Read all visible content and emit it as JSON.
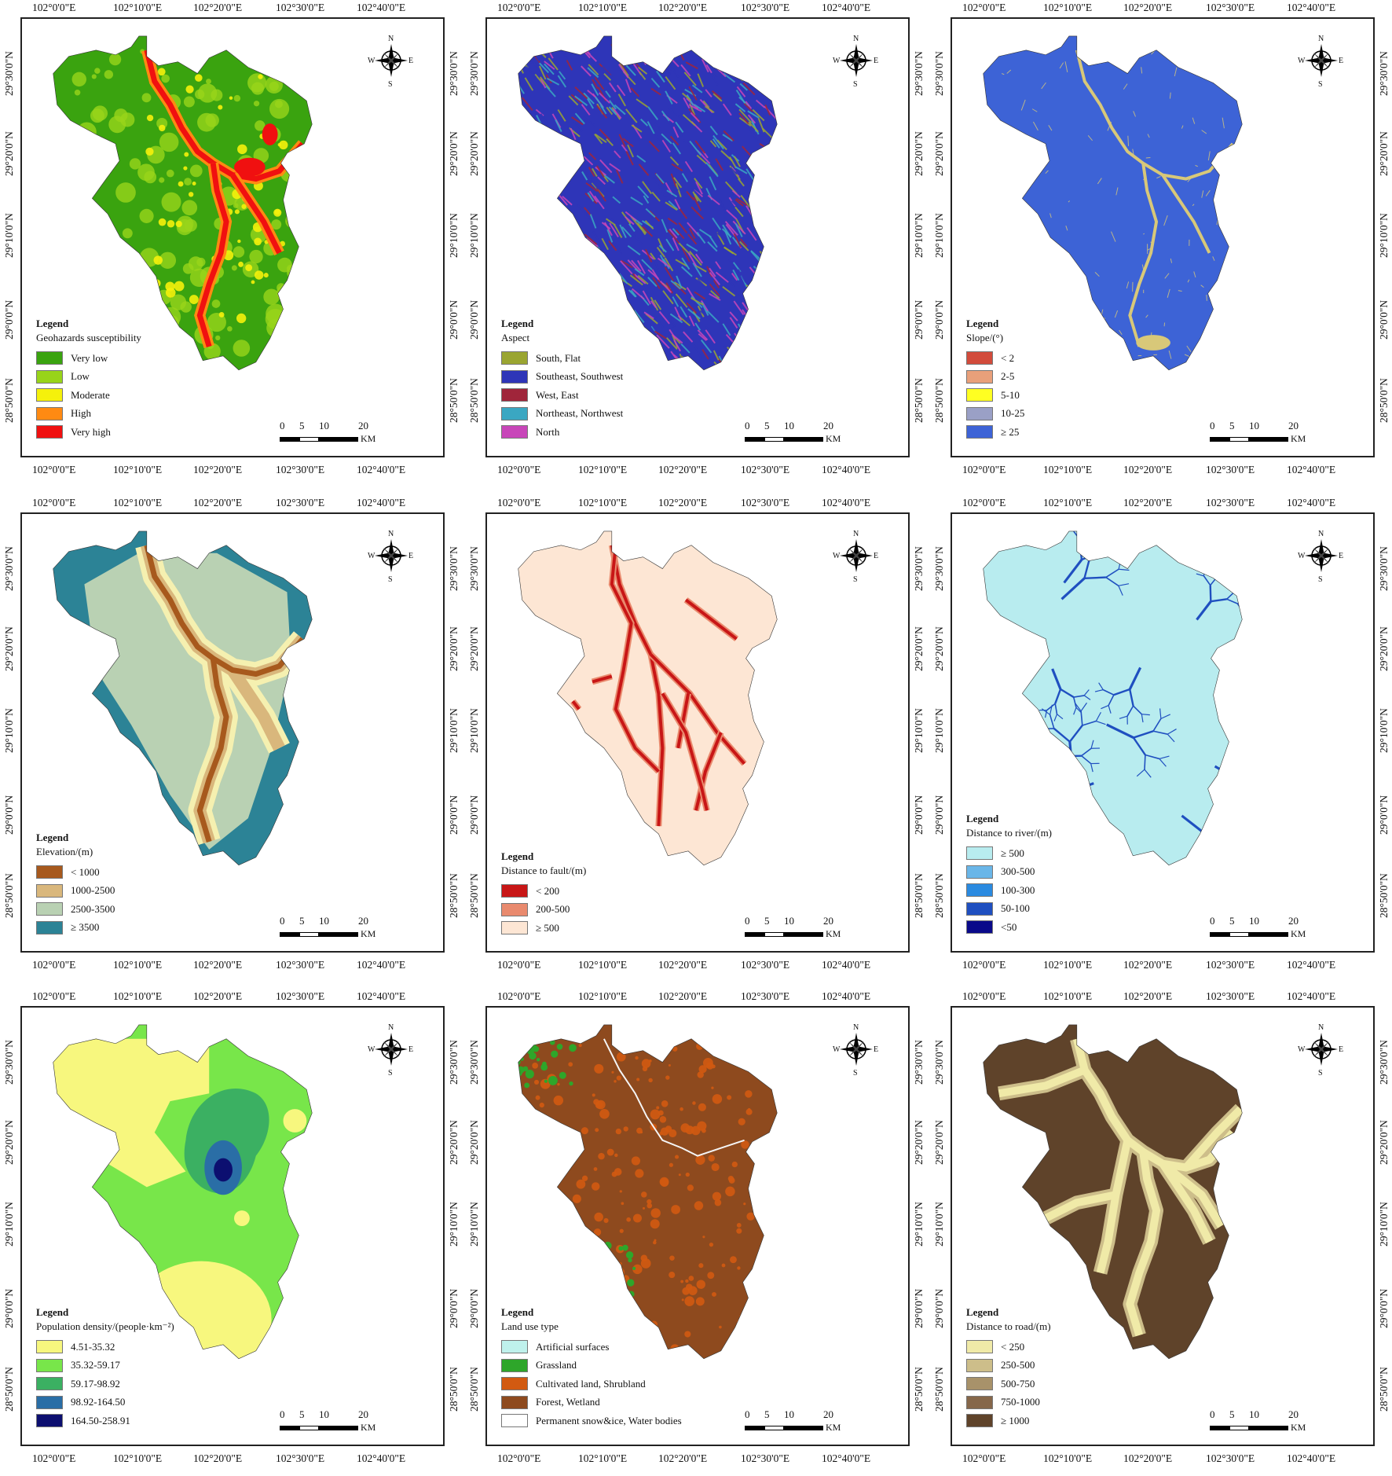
{
  "coords": {
    "lon_labels": [
      "102°0'0\"E",
      "102°10'0\"E",
      "102°20'0\"E",
      "102°30'0\"E",
      "102°40'0\"E"
    ],
    "lat_labels": [
      "29°30'0\"N",
      "29°20'0\"N",
      "29°10'0\"N",
      "29°0'0\"N",
      "28°50'0\"N"
    ]
  },
  "scale": {
    "ticks": [
      "0",
      "5",
      "10",
      "20"
    ],
    "unit": "KM"
  },
  "compass": {
    "n": "N",
    "s": "S",
    "e": "E",
    "w": "W",
    "icon": "north-arrow-compass-rose"
  },
  "panels": [
    {
      "id": "geohazards",
      "legend_title": "Legend",
      "variable": "Geohazards susceptibility",
      "classes": [
        {
          "label": "Very low",
          "color": "#3aa30f"
        },
        {
          "label": "Low",
          "color": "#98d41a"
        },
        {
          "label": "Moderate",
          "color": "#f5f10b"
        },
        {
          "label": "High",
          "color": "#ff8a12"
        },
        {
          "label": "Very high",
          "color": "#f01010"
        }
      ]
    },
    {
      "id": "aspect",
      "legend_title": "Legend",
      "variable": "Aspect",
      "classes": [
        {
          "label": "South, Flat",
          "color": "#9aa531"
        },
        {
          "label": "Southeast, Southwest",
          "color": "#2e35b8"
        },
        {
          "label": "West, East",
          "color": "#a0253a"
        },
        {
          "label": "Northeast, Northwest",
          "color": "#3aa7c2"
        },
        {
          "label": "North",
          "color": "#c846b9"
        }
      ]
    },
    {
      "id": "slope",
      "legend_title": "Legend",
      "variable": "Slope/(°)",
      "classes": [
        {
          "label": "< 2",
          "color": "#d24b3b"
        },
        {
          "label": "2-5",
          "color": "#e9a07a"
        },
        {
          "label": "5-10",
          "color": "#ffff22"
        },
        {
          "label": "10-25",
          "color": "#9aa0c6"
        },
        {
          "label": "≥ 25",
          "color": "#3d63d6"
        }
      ]
    },
    {
      "id": "elevation",
      "legend_title": "Legend",
      "variable": "Elevation/(m)",
      "classes": [
        {
          "label": "< 1000",
          "color": "#a7591d"
        },
        {
          "label": "1000-2500",
          "color": "#d9b77c"
        },
        {
          "label": "2500-3500",
          "color": "#b9d1b3"
        },
        {
          "label": "≥ 3500",
          "color": "#2c8396"
        }
      ]
    },
    {
      "id": "fault",
      "legend_title": "Legend",
      "variable": "Distance to fault/(m)",
      "classes": [
        {
          "label": "< 200",
          "color": "#c81616"
        },
        {
          "label": "200-500",
          "color": "#e98a6e"
        },
        {
          "label": "≥ 500",
          "color": "#fde6d4"
        }
      ]
    },
    {
      "id": "river",
      "legend_title": "Legend",
      "variable": "Distance to river/(m)",
      "classes": [
        {
          "label": "≥ 500",
          "color": "#b8ecef"
        },
        {
          "label": "300-500",
          "color": "#6ab6e8"
        },
        {
          "label": "100-300",
          "color": "#2a8ae0"
        },
        {
          "label": "50-100",
          "color": "#1f4fc0"
        },
        {
          "label": "<50",
          "color": "#0a0a8a"
        }
      ]
    },
    {
      "id": "population",
      "legend_title": "Legend",
      "variable": "Population density/(people·km⁻²)",
      "classes": [
        {
          "label": "4.51-35.32",
          "color": "#f7f77e"
        },
        {
          "label": "35.32-59.17",
          "color": "#78e64a"
        },
        {
          "label": "59.17-98.92",
          "color": "#3bb062"
        },
        {
          "label": "98.92-164.50",
          "color": "#2a6ea6"
        },
        {
          "label": "164.50-258.91",
          "color": "#0c0f70"
        }
      ]
    },
    {
      "id": "landuse",
      "legend_title": "Legend",
      "variable": "Land use type",
      "classes": [
        {
          "label": "Artificial surfaces",
          "color": "#bff1ec"
        },
        {
          "label": "Grassland",
          "color": "#2ea62a"
        },
        {
          "label": "Cultivated land, Shrubland",
          "color": "#d25a11"
        },
        {
          "label": "Forest, Wetland",
          "color": "#8e4a1e"
        },
        {
          "label": "Permanent snow&ice, Water bodies",
          "color": "#ffffff"
        }
      ]
    },
    {
      "id": "road",
      "legend_title": "Legend",
      "variable": "Distance to road/(m)",
      "classes": [
        {
          "label": "< 250",
          "color": "#f0eaa8"
        },
        {
          "label": "250-500",
          "color": "#cdbe8a"
        },
        {
          "label": "500-750",
          "color": "#a8926a"
        },
        {
          "label": "750-1000",
          "color": "#86674a"
        },
        {
          "label": "≥ 1000",
          "color": "#5f432a"
        }
      ]
    }
  ]
}
